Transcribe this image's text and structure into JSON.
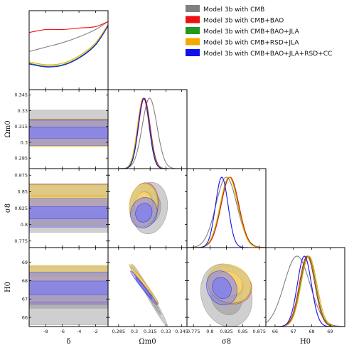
{
  "chart_data": {
    "type": "triangle-corner",
    "parameters": [
      {
        "id": "delta",
        "label": "δ",
        "range": [
          -10,
          -0.5
        ],
        "ticks": [
          -8,
          -6,
          -4,
          -2
        ]
      },
      {
        "id": "omega",
        "label": "Ωm0",
        "range": [
          0.275,
          0.35
        ],
        "ticks": [
          0.285,
          0.3,
          0.315,
          0.33,
          0.345
        ]
      },
      {
        "id": "sigma8",
        "label": "σ8",
        "range": [
          0.765,
          0.885
        ],
        "ticks": [
          0.775,
          0.8,
          0.825,
          0.85,
          0.875
        ]
      },
      {
        "id": "H0",
        "label": "H0",
        "range": [
          65.5,
          69.8
        ],
        "ticks": [
          66,
          67,
          68,
          69
        ]
      }
    ],
    "legend": {
      "position": "top-right",
      "entries": [
        {
          "label": "Model 3b with CMB",
          "color": "#808080"
        },
        {
          "label": "Model 3b with CMB+BAO",
          "color": "#ee1111"
        },
        {
          "label": "Model 3b with CMB+BAO+JLA",
          "color": "#229922"
        },
        {
          "label": "Model 3b with CMB+RSD+JLA",
          "color": "#f5a800"
        },
        {
          "label": "Model 3b with CMB+BAO+JLA+RSD+CC",
          "color": "#1111ee"
        }
      ]
    },
    "series": [
      {
        "key": "cmb",
        "color": "#808080",
        "fill": "#a8a8a8",
        "mean": {
          "omega": 0.3145,
          "sigma8": 0.825,
          "H0": 67.2
        },
        "sd": {
          "omega": 0.007,
          "sigma8": 0.016,
          "H0": 0.7
        },
        "delta_curve": [
          [
            -10,
            0.52
          ],
          [
            -8,
            0.58
          ],
          [
            -6,
            0.64
          ],
          [
            -4,
            0.72
          ],
          [
            -2,
            0.82
          ],
          [
            -0.5,
            0.93
          ]
        ]
      },
      {
        "key": "bao",
        "color": "#ee1111",
        "fill": "#ff9090",
        "mean": {
          "omega": 0.3095,
          "sigma8": 0.8305,
          "H0": 67.75
        },
        "sd": {
          "omega": 0.0055,
          "sigma8": 0.0135,
          "H0": 0.42
        },
        "delta_curve": [
          [
            -10,
            0.78
          ],
          [
            -8,
            0.82
          ],
          [
            -6,
            0.82
          ],
          [
            -4,
            0.84
          ],
          [
            -2,
            0.86
          ],
          [
            -0.5,
            0.93
          ]
        ]
      },
      {
        "key": "jla",
        "color": "#229922",
        "fill": "#8fd08f",
        "mean": {
          "omega": 0.309,
          "sigma8": 0.8295,
          "H0": 67.8
        },
        "sd": {
          "omega": 0.0055,
          "sigma8": 0.0135,
          "H0": 0.42
        },
        "delta_curve": [
          [
            -10,
            0.36
          ],
          [
            -8,
            0.32
          ],
          [
            -6,
            0.34
          ],
          [
            -4,
            0.44
          ],
          [
            -2,
            0.62
          ],
          [
            -0.5,
            0.88
          ]
        ]
      },
      {
        "key": "rsd",
        "color": "#f5a800",
        "fill": "#ffd270",
        "mean": {
          "omega": 0.3085,
          "sigma8": 0.829,
          "H0": 67.85
        },
        "sd": {
          "omega": 0.0055,
          "sigma8": 0.0135,
          "H0": 0.43
        },
        "delta_curve": [
          [
            -10,
            0.38
          ],
          [
            -8,
            0.34
          ],
          [
            -6,
            0.36
          ],
          [
            -4,
            0.46
          ],
          [
            -2,
            0.64
          ],
          [
            -0.5,
            0.89
          ]
        ]
      },
      {
        "key": "cc",
        "color": "#1111ee",
        "fill": "#7f7fef",
        "mean": {
          "omega": 0.309,
          "sigma8": 0.818,
          "H0": 67.6
        },
        "sd": {
          "omega": 0.0052,
          "sigma8": 0.0095,
          "H0": 0.38
        },
        "delta_curve": [
          [
            -10,
            0.35
          ],
          [
            -8,
            0.31
          ],
          [
            -6,
            0.33
          ],
          [
            -4,
            0.43
          ],
          [
            -2,
            0.61
          ],
          [
            -0.5,
            0.87
          ]
        ]
      }
    ]
  }
}
